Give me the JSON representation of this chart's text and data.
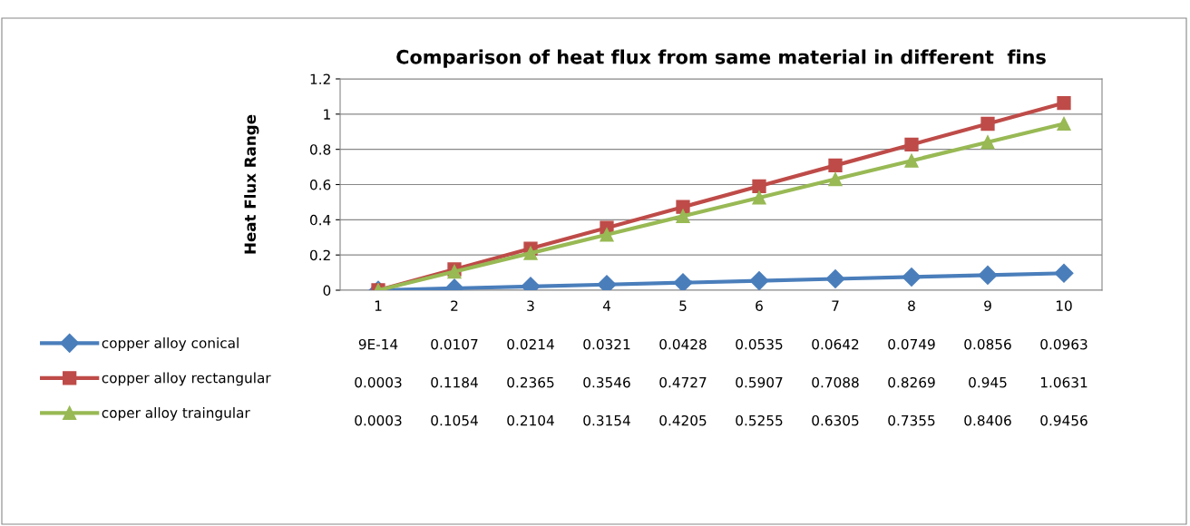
{
  "chart_data": {
    "type": "line",
    "title": "Comparison of heat flux from same material in different  fins",
    "ylabel": "Heat Flux Range",
    "categories": [
      "1",
      "2",
      "3",
      "4",
      "5",
      "6",
      "7",
      "8",
      "9",
      "10"
    ],
    "series": [
      {
        "name": "copper alloy conical",
        "color": "#4a7ebb",
        "marker": "diamond",
        "values": [
          9e-14,
          0.0107,
          0.0214,
          0.0321,
          0.0428,
          0.0535,
          0.0642,
          0.0749,
          0.0856,
          0.0963
        ],
        "value_labels": [
          "9E-14",
          "0.0107",
          "0.0214",
          "0.0321",
          "0.0428",
          "0.0535",
          "0.0642",
          "0.0749",
          "0.0856",
          "0.0963"
        ]
      },
      {
        "name": "copper alloy rectangular",
        "color": "#be4b48",
        "marker": "square",
        "values": [
          0.0003,
          0.1184,
          0.2365,
          0.3546,
          0.4727,
          0.5907,
          0.7088,
          0.8269,
          0.945,
          1.0631
        ],
        "value_labels": [
          "0.0003",
          "0.1184",
          "0.2365",
          "0.3546",
          "0.4727",
          "0.5907",
          "0.7088",
          "0.8269",
          "0.945",
          "1.0631"
        ]
      },
      {
        "name": "coper alloy traingular",
        "color": "#98b954",
        "marker": "triangle",
        "values": [
          0.0003,
          0.1054,
          0.2104,
          0.3154,
          0.4205,
          0.5255,
          0.6305,
          0.7355,
          0.8406,
          0.9456
        ],
        "value_labels": [
          "0.0003",
          "0.1054",
          "0.2104",
          "0.3154",
          "0.4205",
          "0.5255",
          "0.6305",
          "0.7355",
          "0.8406",
          "0.9456"
        ]
      }
    ],
    "ylim": [
      0,
      1.2
    ],
    "yticks": [
      0,
      0.2,
      0.4,
      0.6,
      0.8,
      1,
      1.2
    ],
    "grid": "y",
    "legend": "bottom"
  }
}
